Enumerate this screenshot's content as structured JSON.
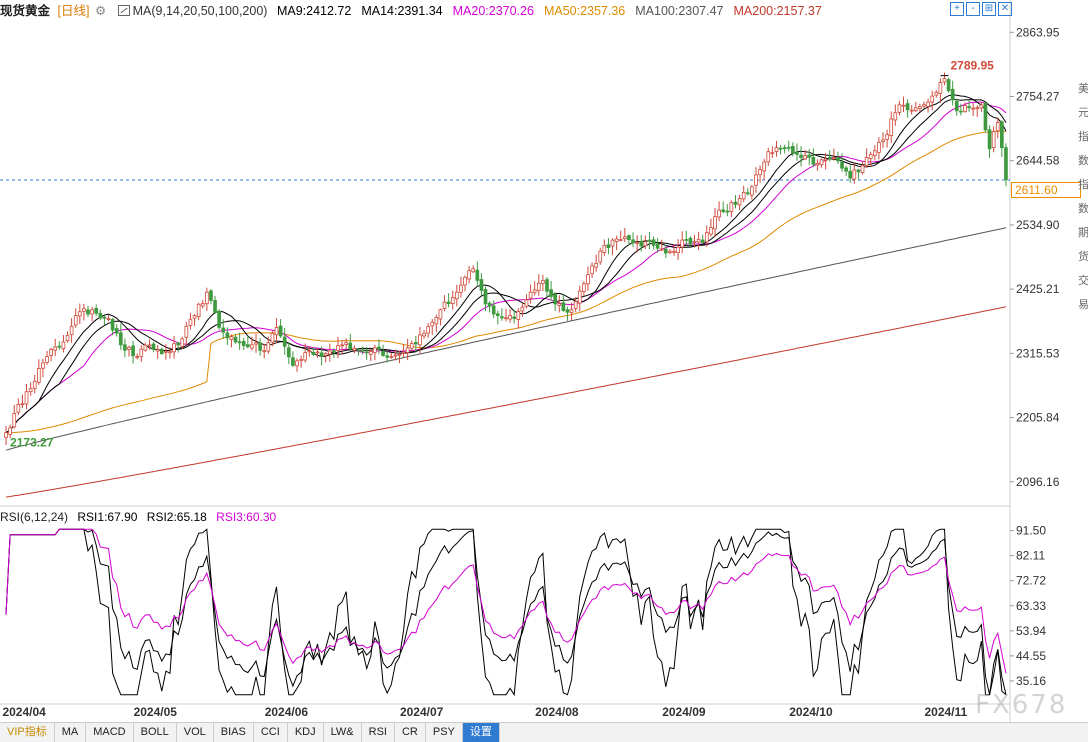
{
  "header": {
    "instrument": "现货黄金",
    "period": "[日线]",
    "gear_icon": "gear-icon",
    "ma_params": "MA(9,14,20,50,100,200)",
    "ma_values": [
      {
        "label": "MA9:2412.72",
        "color": "#000000"
      },
      {
        "label": "MA14:2391.34",
        "color": "#000000"
      },
      {
        "label": "MA20:2370.26",
        "color": "#d400d4"
      },
      {
        "label": "MA50:2357.36",
        "color": "#e08a00"
      },
      {
        "label": "MA100:2307.47",
        "color": "#555555"
      },
      {
        "label": "MA200:2157.37",
        "color": "#c0392b"
      }
    ]
  },
  "window_tools": [
    "+",
    "-",
    "⊞",
    "✕"
  ],
  "rsi_header": {
    "params": "RSI(6,12,24)",
    "rsi1": "RSI1:67.90",
    "rsi2": "RSI2:65.18",
    "rsi3": "RSI3:60.30"
  },
  "price_tag": "2611.60",
  "watermark": "FX678",
  "right_edge_chars": [
    "美",
    "元",
    "指",
    "数",
    "指",
    "数",
    "期",
    "货",
    "交",
    "易"
  ],
  "tabs": [
    {
      "label": "VIP指标",
      "vip": true,
      "active": false
    },
    {
      "label": "MA",
      "vip": false,
      "active": false
    },
    {
      "label": "MACD",
      "vip": false,
      "active": false
    },
    {
      "label": "BOLL",
      "vip": false,
      "active": false
    },
    {
      "label": "VOL",
      "vip": false,
      "active": false
    },
    {
      "label": "BIAS",
      "vip": false,
      "active": false
    },
    {
      "label": "CCI",
      "vip": false,
      "active": false
    },
    {
      "label": "KDJ",
      "vip": false,
      "active": false
    },
    {
      "label": "LW&",
      "vip": false,
      "active": false
    },
    {
      "label": "RSI",
      "vip": false,
      "active": false
    },
    {
      "label": "CR",
      "vip": false,
      "active": false
    },
    {
      "label": "PSY",
      "vip": false,
      "active": false
    },
    {
      "label": "设置",
      "vip": false,
      "active": true
    }
  ],
  "chart_data": {
    "type": "candlestick",
    "price_axis": {
      "ticks": [
        2863.95,
        2754.27,
        2644.58,
        2534.9,
        2425.21,
        2315.53,
        2205.84,
        2096.16
      ],
      "ylim": [
        2065,
        2885
      ]
    },
    "rsi_axis": {
      "ticks": [
        91.5,
        82.11,
        72.72,
        63.33,
        53.94,
        44.55,
        35.16
      ],
      "ylim": [
        28,
        94
      ]
    },
    "x_axis_labels": [
      "2024/04",
      "2024/05",
      "2024/06",
      "2024/07",
      "2024/08",
      "2024/09",
      "2024/10",
      "2024/11"
    ],
    "annotations": {
      "high": "2789.95",
      "low": "2173.27"
    },
    "current_price": 2611.6,
    "bull_color": "#d04a3a",
    "bear_color": "#3f9a3f",
    "ma_colors": {
      "ma9": "#000000",
      "ma14": "#000000",
      "ma20": "#d400d4",
      "ma50": "#e08a00",
      "ma100": "#555555",
      "ma200": "#c0392b"
    },
    "rsi_colors": {
      "rsi1": "#000000",
      "rsi2": "#000000",
      "rsi3": "#d400d4"
    },
    "close_anchors": [
      [
        0,
        2180
      ],
      [
        5,
        2250
      ],
      [
        10,
        2310
      ],
      [
        14,
        2335
      ],
      [
        17,
        2380
      ],
      [
        21,
        2390
      ],
      [
        25,
        2375
      ],
      [
        28,
        2330
      ],
      [
        32,
        2310
      ],
      [
        35,
        2330
      ],
      [
        38,
        2315
      ],
      [
        42,
        2330
      ],
      [
        46,
        2380
      ],
      [
        49,
        2420
      ],
      [
        52,
        2360
      ],
      [
        56,
        2335
      ],
      [
        60,
        2330
      ],
      [
        63,
        2320
      ],
      [
        66,
        2360
      ],
      [
        70,
        2295
      ],
      [
        74,
        2320
      ],
      [
        78,
        2315
      ],
      [
        82,
        2330
      ],
      [
        86,
        2320
      ],
      [
        90,
        2325
      ],
      [
        94,
        2310
      ],
      [
        98,
        2325
      ],
      [
        102,
        2350
      ],
      [
        106,
        2390
      ],
      [
        110,
        2420
      ],
      [
        114,
        2460
      ],
      [
        117,
        2400
      ],
      [
        120,
        2380
      ],
      [
        124,
        2375
      ],
      [
        128,
        2420
      ],
      [
        131,
        2440
      ],
      [
        134,
        2400
      ],
      [
        138,
        2390
      ],
      [
        142,
        2450
      ],
      [
        146,
        2500
      ],
      [
        150,
        2510
      ],
      [
        154,
        2505
      ],
      [
        158,
        2500
      ],
      [
        162,
        2490
      ],
      [
        166,
        2510
      ],
      [
        170,
        2505
      ],
      [
        174,
        2560
      ],
      [
        178,
        2570
      ],
      [
        182,
        2600
      ],
      [
        186,
        2660
      ],
      [
        190,
        2665
      ],
      [
        194,
        2650
      ],
      [
        198,
        2640
      ],
      [
        202,
        2650
      ],
      [
        206,
        2615
      ],
      [
        210,
        2650
      ],
      [
        214,
        2680
      ],
      [
        218,
        2740
      ],
      [
        222,
        2735
      ],
      [
        226,
        2755
      ],
      [
        229,
        2785
      ],
      [
        232,
        2730
      ],
      [
        235,
        2735
      ],
      [
        238,
        2740
      ],
      [
        240,
        2665
      ],
      [
        242,
        2710
      ],
      [
        244,
        2612
      ]
    ]
  }
}
